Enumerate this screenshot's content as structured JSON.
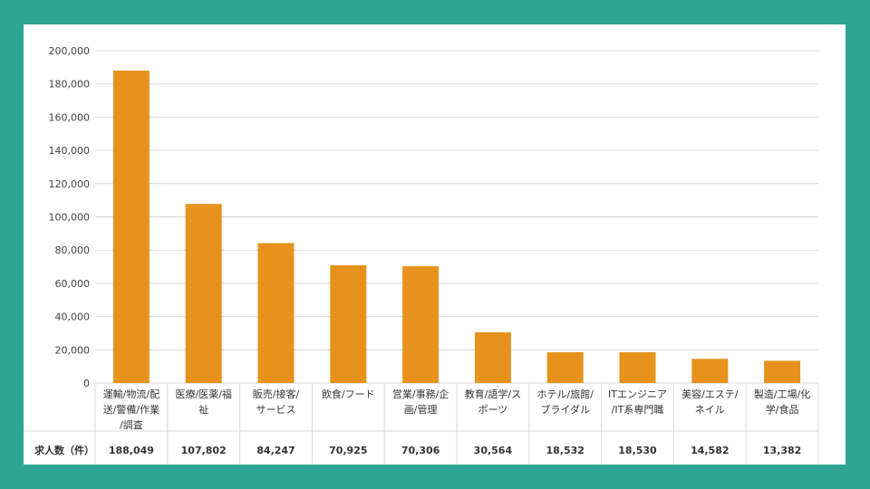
{
  "chart_data": {
    "type": "bar",
    "title": "",
    "xlabel": "",
    "ylabel": "",
    "ylim": [
      0,
      200000
    ],
    "yticks": [
      "0",
      "20,000",
      "40,000",
      "60,000",
      "80,000",
      "100,000",
      "120,000",
      "140,000",
      "160,000",
      "180,000",
      "200,000"
    ],
    "grid": true,
    "bar_color": "#e8921e",
    "categories": [
      [
        "運輸/物流/配",
        "送/警備/作業",
        "/調査"
      ],
      [
        "医療/医薬/福",
        "祉"
      ],
      [
        "販売/接客/",
        "サービス"
      ],
      [
        "飲食/フード"
      ],
      [
        "営業/事務/企",
        "画/管理"
      ],
      [
        "教育/語学/ス",
        "ポーツ"
      ],
      [
        "ホテル/旅館/",
        "ブライダル"
      ],
      [
        "ITエンジニア",
        "/IT系専門職"
      ],
      [
        "美容/エステ/",
        "ネイル"
      ],
      [
        "製造/工場/化",
        "学/食品"
      ]
    ],
    "values": [
      188049,
      107802,
      84247,
      70925,
      70306,
      30564,
      18532,
      18530,
      14582,
      13382
    ],
    "table_row_header": "求人数（件）",
    "value_labels": [
      "188,049",
      "107,802",
      "84,247",
      "70,925",
      "70,306",
      "30,564",
      "18,532",
      "18,530",
      "14,582",
      "13,382"
    ]
  }
}
